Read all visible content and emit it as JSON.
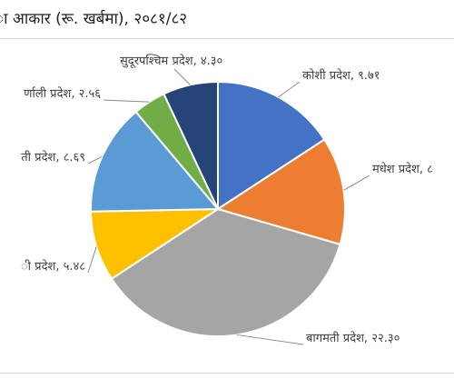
{
  "chart_data": {
    "type": "pie",
    "title": "ा आकार (रू. खर्बमा), २०८१/८२",
    "slices": [
      {
        "label": "कोशी प्रदेश, ९.७१",
        "value": 9.71,
        "color": "#4472C4"
      },
      {
        "label": "मधेश प्रदेश, ८",
        "value": 8.4,
        "color": "#ED7D31"
      },
      {
        "label": "बागमती प्रदेश, २२.३०",
        "value": 22.3,
        "color": "#A5A5A5"
      },
      {
        "label": "ी प्रदेश, ५.४८",
        "value": 5.48,
        "color": "#FFC000"
      },
      {
        "label": "ती प्रदेश, ८.६९",
        "value": 8.69,
        "color": "#5B9BD5"
      },
      {
        "label": "र्णाली प्रदेश, २.५६",
        "value": 2.56,
        "color": "#70AD47"
      },
      {
        "label": "सुदूरपश्चिम प्रदेश, ४.३०",
        "value": 4.3,
        "color": "#264478"
      }
    ]
  }
}
